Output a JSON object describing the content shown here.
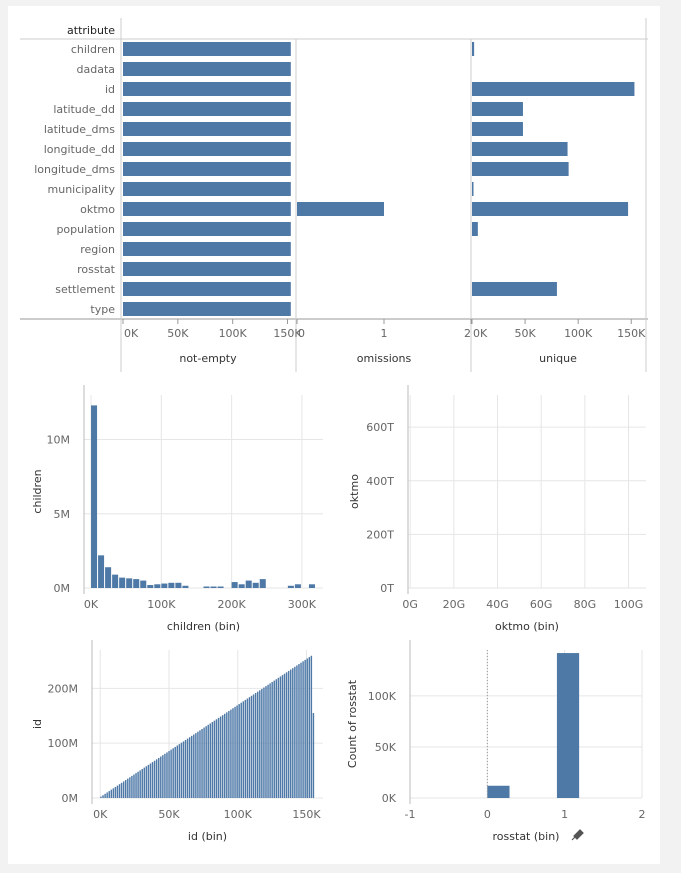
{
  "colors": {
    "bar": "#4e79a7",
    "grid": "#e6e6e6",
    "axis": "#999999",
    "panel": "#ffffff",
    "bg": "#f2f2f2"
  },
  "header": {
    "attribute_label": "attribute"
  },
  "chart_data": [
    {
      "type": "bar",
      "orientation": "horizontal",
      "categories": [
        "children",
        "dadata",
        "id",
        "latitude_dd",
        "latitude_dms",
        "longitude_dd",
        "longitude_dms",
        "municipality",
        "oktmo",
        "population",
        "region",
        "rosstat",
        "settlement",
        "type"
      ],
      "panels": [
        {
          "xlabel": "not-empty",
          "xlim": [
            0,
            155000
          ],
          "ticks": [
            0,
            50000,
            100000,
            150000
          ],
          "tick_labels": [
            "0K",
            "50K",
            "100K",
            "150K"
          ],
          "values": [
            153000,
            153000,
            153000,
            153000,
            153000,
            153000,
            153000,
            153000,
            153000,
            153000,
            153000,
            153000,
            153000,
            153000
          ]
        },
        {
          "xlabel": "omissions",
          "xlim": [
            0,
            2
          ],
          "ticks": [
            0,
            1,
            2
          ],
          "tick_labels": [
            "0",
            "1",
            "2"
          ],
          "values": [
            0,
            0,
            0,
            0,
            0,
            0,
            0,
            0,
            1,
            0,
            0,
            0,
            0,
            0
          ]
        },
        {
          "xlabel": "unique",
          "xlim": [
            0,
            162000
          ],
          "ticks": [
            0,
            50000,
            100000,
            150000
          ],
          "tick_labels": [
            "0K",
            "50K",
            "100K",
            "150K"
          ],
          "values": [
            2000,
            0,
            153000,
            48000,
            48000,
            90000,
            91000,
            1000,
            147000,
            5500,
            0,
            0,
            80000,
            0
          ]
        }
      ]
    },
    {
      "type": "bar",
      "title": "",
      "xlabel": "children (bin)",
      "ylabel": "children",
      "xlim": [
        -10000,
        330000
      ],
      "ylim": [
        0,
        13000000
      ],
      "xticks": [
        0,
        100000,
        200000,
        300000
      ],
      "xtick_labels": [
        "0K",
        "100K",
        "200K",
        "300K"
      ],
      "yticks": [
        0,
        5000000,
        10000000
      ],
      "ytick_labels": [
        "0M",
        "5M",
        "10M"
      ],
      "bin_width": 10000,
      "x": [
        0,
        10000,
        20000,
        30000,
        40000,
        50000,
        60000,
        70000,
        80000,
        90000,
        100000,
        110000,
        120000,
        130000,
        140000,
        150000,
        160000,
        170000,
        180000,
        190000,
        200000,
        210000,
        220000,
        230000,
        240000,
        250000,
        260000,
        270000,
        280000,
        290000,
        300000,
        310000
      ],
      "values": [
        12300000,
        2200000,
        1400000,
        900000,
        700000,
        650000,
        600000,
        500000,
        200000,
        250000,
        300000,
        350000,
        350000,
        150000,
        0,
        0,
        100000,
        100000,
        100000,
        0,
        400000,
        250000,
        500000,
        350000,
        600000,
        0,
        0,
        0,
        150000,
        250000,
        0,
        250000
      ]
    },
    {
      "type": "bar",
      "xlabel": "oktmo (bin)",
      "ylabel": "oktmo",
      "xlim": [
        -1000000000,
        108000000000
      ],
      "ylim": [
        0,
        720000000000000
      ],
      "xticks": [
        0,
        20000000000,
        40000000000,
        60000000000,
        80000000000,
        100000000000
      ],
      "xtick_labels": [
        "0G",
        "20G",
        "40G",
        "60G",
        "80G",
        "100G"
      ],
      "yticks": [
        0,
        200000000000000,
        400000000000000,
        600000000000000
      ],
      "ytick_labels": [
        "0T",
        "200T",
        "400T",
        "600T"
      ],
      "bin_width": 1000000000,
      "x": [
        7,
        8,
        10,
        12,
        15,
        17,
        18,
        19,
        20,
        22,
        23,
        24,
        25,
        26,
        27,
        28,
        29,
        30,
        31,
        32,
        33,
        34,
        35,
        36,
        37,
        38,
        39,
        40,
        41,
        42,
        43,
        44,
        45,
        46,
        47,
        48,
        49,
        50,
        51,
        52,
        53,
        54,
        55,
        56,
        57,
        58,
        59,
        60,
        61,
        62,
        63,
        64,
        65,
        66,
        67,
        68,
        69,
        70,
        71,
        72,
        73,
        74,
        75,
        76,
        77,
        78,
        79,
        80,
        81,
        82,
        83,
        84,
        85,
        86,
        87,
        88,
        89,
        90,
        91,
        92,
        93,
        94,
        95,
        96,
        97,
        98,
        99,
        100,
        101,
        102
      ],
      "values": [
        5,
        10,
        30,
        20,
        25,
        20,
        40,
        75,
        20,
        165,
        120,
        90,
        35,
        90,
        60,
        50,
        30,
        240,
        20,
        60,
        30,
        135,
        125,
        55,
        120,
        35,
        15,
        30,
        60,
        40,
        95,
        20,
        70,
        90,
        200,
        45,
        185,
        170,
        95,
        100,
        40,
        20,
        75,
        40,
        20,
        685,
        200,
        40,
        150,
        40,
        130,
        40,
        95,
        60,
        20,
        140,
        30,
        325,
        40,
        115,
        20,
        270,
        55,
        20,
        95,
        40,
        90,
        50,
        20,
        130,
        460,
        380,
        35,
        40,
        300,
        60,
        60,
        125,
        20,
        35,
        140,
        50,
        270,
        45,
        200,
        60,
        30,
        180,
        50,
        30
      ]
    },
    {
      "type": "bar",
      "xlabel": "id (bin)",
      "ylabel": "id",
      "xlim": [
        -6000,
        162000
      ],
      "ylim": [
        0,
        270000000
      ],
      "xticks": [
        0,
        50000,
        100000,
        150000
      ],
      "xtick_labels": [
        "0K",
        "50K",
        "100K",
        "150K"
      ],
      "yticks": [
        0,
        100000000,
        200000000
      ],
      "ytick_labels": [
        "0M",
        "100M",
        "200M"
      ],
      "bin_width": 1500,
      "note_values": "linear increase from ~0 to ~262M across bins 0–156K, last bin ~155M"
    },
    {
      "type": "bar",
      "xlabel": "rosstat (bin)",
      "ylabel": "Count of rosstat",
      "xlim": [
        -1,
        2
      ],
      "ylim": [
        0,
        145000
      ],
      "xticks": [
        -1,
        0,
        1,
        2
      ],
      "xtick_labels": [
        "-1",
        "0",
        "1",
        "2"
      ],
      "yticks": [
        0,
        50000,
        100000
      ],
      "ytick_labels": [
        "0K",
        "50K",
        "100K"
      ],
      "bin_width": 0.3,
      "x": [
        0,
        0.9
      ],
      "values": [
        12000,
        142000
      ],
      "ref_line_x": 0
    }
  ],
  "id_chart_last_value": 155000000,
  "id_chart_max_value": 262000000
}
